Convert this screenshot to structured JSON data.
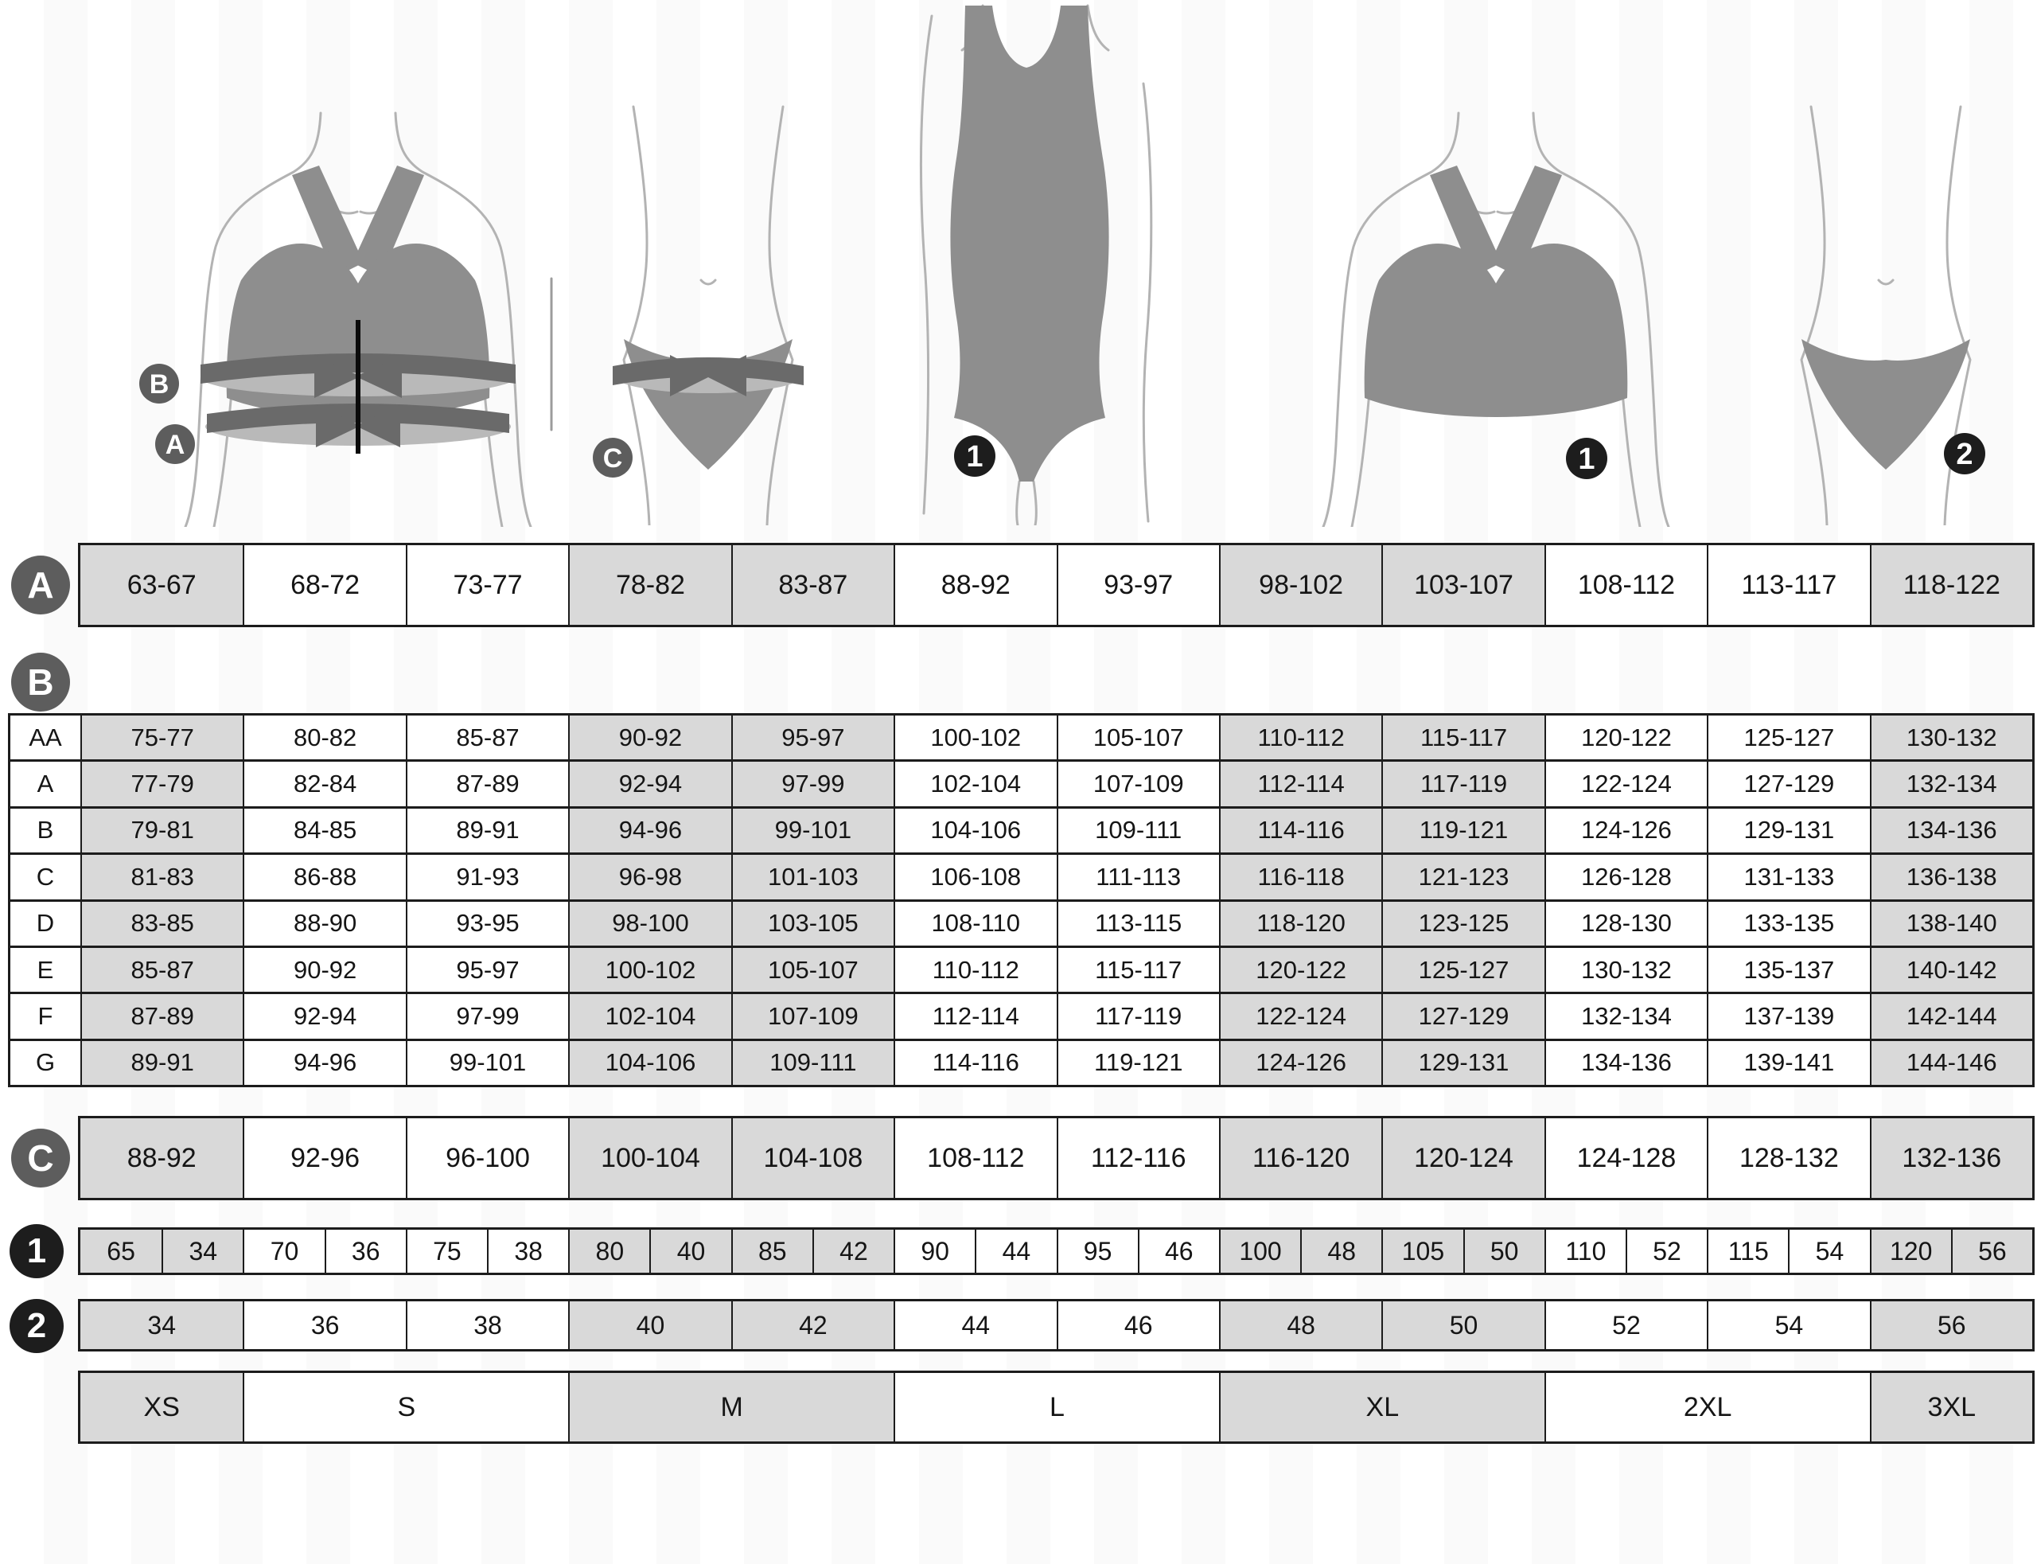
{
  "badges": {
    "a": "A",
    "b": "B",
    "c": "C",
    "one": "1",
    "two": "2"
  },
  "figures": [
    {
      "kind": "bra-with-measuring-tapes",
      "badges": [
        "B",
        "A"
      ]
    },
    {
      "kind": "briefs-with-measuring-tape",
      "badges": [
        "C"
      ]
    },
    {
      "kind": "bodysuit",
      "badges": [
        "1"
      ]
    },
    {
      "kind": "bra",
      "badges": [
        "1"
      ]
    },
    {
      "kind": "briefs",
      "badges": [
        "2"
      ]
    }
  ],
  "colors": {
    "cell_gray": "#d9d9d9",
    "cell_white": "#ffffff",
    "border": "#1c1c1c",
    "letter_badge": "#5d5d5d",
    "number_badge": "#1d1d1d",
    "garment": "#8e8e8e",
    "tape_dark": "#6a6a6a",
    "tape_light": "#b9b9b9",
    "outline": "#b3b3b3",
    "text": "#151515"
  },
  "chart_data": {
    "type": "table",
    "column_groups": [
      0,
      1,
      1,
      2,
      2,
      3,
      3,
      4,
      4,
      5,
      5,
      6
    ],
    "tables": {
      "a": {
        "label": "A",
        "values": [
          "63-67",
          "68-72",
          "73-77",
          "78-82",
          "83-87",
          "88-92",
          "93-97",
          "98-102",
          "103-107",
          "108-112",
          "113-117",
          "118-122"
        ]
      },
      "b": {
        "label": "B",
        "rows": [
          {
            "label": "AA",
            "values": [
              "75-77",
              "80-82",
              "85-87",
              "90-92",
              "95-97",
              "100-102",
              "105-107",
              "110-112",
              "115-117",
              "120-122",
              "125-127",
              "130-132"
            ]
          },
          {
            "label": "A",
            "values": [
              "77-79",
              "82-84",
              "87-89",
              "92-94",
              "97-99",
              "102-104",
              "107-109",
              "112-114",
              "117-119",
              "122-124",
              "127-129",
              "132-134"
            ]
          },
          {
            "label": "B",
            "values": [
              "79-81",
              "84-85",
              "89-91",
              "94-96",
              "99-101",
              "104-106",
              "109-111",
              "114-116",
              "119-121",
              "124-126",
              "129-131",
              "134-136"
            ]
          },
          {
            "label": "C",
            "values": [
              "81-83",
              "86-88",
              "91-93",
              "96-98",
              "101-103",
              "106-108",
              "111-113",
              "116-118",
              "121-123",
              "126-128",
              "131-133",
              "136-138"
            ]
          },
          {
            "label": "D",
            "values": [
              "83-85",
              "88-90",
              "93-95",
              "98-100",
              "103-105",
              "108-110",
              "113-115",
              "118-120",
              "123-125",
              "128-130",
              "133-135",
              "138-140"
            ]
          },
          {
            "label": "E",
            "values": [
              "85-87",
              "90-92",
              "95-97",
              "100-102",
              "105-107",
              "110-112",
              "115-117",
              "120-122",
              "125-127",
              "130-132",
              "135-137",
              "140-142"
            ]
          },
          {
            "label": "F",
            "values": [
              "87-89",
              "92-94",
              "97-99",
              "102-104",
              "107-109",
              "112-114",
              "117-119",
              "122-124",
              "127-129",
              "132-134",
              "137-139",
              "142-144"
            ]
          },
          {
            "label": "G",
            "values": [
              "89-91",
              "94-96",
              "99-101",
              "104-106",
              "109-111",
              "114-116",
              "119-121",
              "124-126",
              "129-131",
              "134-136",
              "139-141",
              "144-146"
            ]
          }
        ]
      },
      "c": {
        "label": "C",
        "values": [
          "88-92",
          "92-96",
          "96-100",
          "100-104",
          "104-108",
          "108-112",
          "112-116",
          "116-120",
          "120-124",
          "124-128",
          "128-132",
          "132-136"
        ]
      },
      "one": {
        "label": "1",
        "pairs": [
          [
            "65",
            "34"
          ],
          [
            "70",
            "36"
          ],
          [
            "75",
            "38"
          ],
          [
            "80",
            "40"
          ],
          [
            "85",
            "42"
          ],
          [
            "90",
            "44"
          ],
          [
            "95",
            "46"
          ],
          [
            "100",
            "48"
          ],
          [
            "105",
            "50"
          ],
          [
            "110",
            "52"
          ],
          [
            "115",
            "54"
          ],
          [
            "120",
            "56"
          ]
        ]
      },
      "two": {
        "label": "2",
        "values": [
          "34",
          "36",
          "38",
          "40",
          "42",
          "44",
          "46",
          "48",
          "50",
          "52",
          "54",
          "56"
        ]
      },
      "sizes": {
        "labels": [
          "XS",
          "S",
          "M",
          "L",
          "XL",
          "2XL",
          "3XL"
        ],
        "spans": [
          1,
          2,
          2,
          2,
          2,
          2,
          1
        ]
      }
    }
  }
}
